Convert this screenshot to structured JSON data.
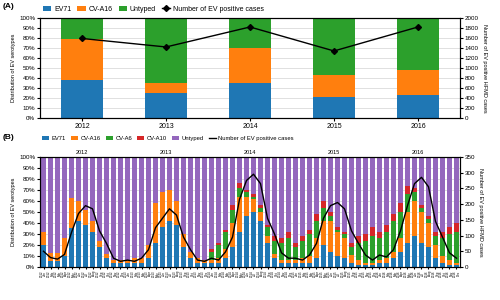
{
  "chart_data": [
    {
      "type": "bar",
      "stacked": true,
      "title": "(A)",
      "categories": [
        "2012",
        "2013",
        "2014",
        "2015",
        "2016"
      ],
      "ylabel": "Distribution of EV serotypes",
      "y2label": "Number of EV positive HFMD cases",
      "ylim": [
        0,
        100
      ],
      "yticks": [
        {
          "value": 0,
          "label": "0%"
        },
        {
          "value": 10,
          "label": "10%"
        },
        {
          "value": 20,
          "label": "20%"
        },
        {
          "value": 30,
          "label": "30%"
        },
        {
          "value": 40,
          "label": "40%"
        },
        {
          "value": 50,
          "label": "50%"
        },
        {
          "value": 60,
          "label": "60%"
        },
        {
          "value": 70,
          "label": "70%"
        },
        {
          "value": 80,
          "label": "80%"
        },
        {
          "value": 90,
          "label": "90%"
        },
        {
          "value": 100,
          "label": "100%"
        }
      ],
      "y2lim": [
        0,
        2000
      ],
      "y2ticks": [
        0,
        200,
        400,
        600,
        800,
        1000,
        1200,
        1400,
        1600,
        1800,
        2000
      ],
      "grid": true,
      "legend": "upper left",
      "series": [
        {
          "name": "EV71",
          "values": [
            38,
            25,
            35,
            21,
            23
          ]
        },
        {
          "name": "CV-A16",
          "values": [
            41,
            10,
            35,
            22,
            25
          ]
        },
        {
          "name": "Untyped",
          "values": [
            21,
            65,
            30,
            57,
            52
          ]
        },
        {
          "name": "Number of EV positive cases",
          "type": "line",
          "axis": "y2",
          "color": "black",
          "marker": "diamond",
          "values": [
            1590,
            1420,
            1820,
            1340,
            1820
          ]
        }
      ]
    },
    {
      "type": "bar",
      "stacked": true,
      "title": "(B)",
      "categories": [
        "2012\nJan",
        "2012\nFeb",
        "2012\nMar",
        "2012\nApr",
        "2012\nMay",
        "2012\nJun",
        "2012\nJul",
        "2012\nAug",
        "2012\nSep",
        "2012\nOct",
        "2012\nNov",
        "2012\nDec",
        "2013\nJan",
        "2013\nFeb",
        "2013\nMar",
        "2013\nApr",
        "2013\nMay",
        "2013\nJun",
        "2013\nJul",
        "2013\nAug",
        "2013\nSep",
        "2013\nOct",
        "2013\nNov",
        "2013\nDec",
        "2014\nJan",
        "2014\nFeb",
        "2014\nMar",
        "2014\nApr",
        "2014\nMay",
        "2014\nJun",
        "2014\nJul",
        "2014\nAug",
        "2014\nSep",
        "2014\nOct",
        "2014\nNov",
        "2014\nDec",
        "2015\nJan",
        "2015\nFeb",
        "2015\nMar",
        "2015\nApr",
        "2015\nMay",
        "2015\nJun",
        "2015\nJul",
        "2015\nAug",
        "2015\nSep",
        "2015\nOct",
        "2015\nNov",
        "2015\nDec",
        "2016\nJan",
        "2016\nFeb",
        "2016\nMar",
        "2016\nApr",
        "2016\nMay",
        "2016\nJun",
        "2016\nJul",
        "2016\nAug",
        "2016\nSep",
        "2016\nOct",
        "2016\nNov",
        "2016\nDec"
      ],
      "ylabel": "Distribution of EV serotypes",
      "y2label": "Number of EV positive HFMD cases",
      "ylim": [
        0,
        100
      ],
      "yticks": [
        {
          "value": 0,
          "label": "0%"
        },
        {
          "value": 10,
          "label": "10%"
        },
        {
          "value": 20,
          "label": "20%"
        },
        {
          "value": 30,
          "label": "30%"
        },
        {
          "value": 40,
          "label": "40%"
        },
        {
          "value": 50,
          "label": "50%"
        },
        {
          "value": 60,
          "label": "60%"
        },
        {
          "value": 70,
          "label": "70%"
        },
        {
          "value": 80,
          "label": "80%"
        },
        {
          "value": 90,
          "label": "90%"
        },
        {
          "value": 100,
          "label": "100%"
        }
      ],
      "y2lim": [
        0,
        350
      ],
      "y2ticks": [
        0,
        50,
        100,
        150,
        200,
        250,
        300,
        350
      ],
      "grid": true,
      "legend": "upper left",
      "annotations": [
        "2012",
        "2013",
        "2014",
        "2015",
        "2016"
      ],
      "series": [
        {
          "name": "EV71",
          "values": [
            20,
            5,
            5,
            10,
            35,
            42,
            38,
            32,
            18,
            8,
            4,
            4,
            4,
            4,
            4,
            8,
            22,
            36,
            42,
            38,
            18,
            8,
            4,
            4,
            4,
            4,
            8,
            18,
            32,
            46,
            50,
            42,
            22,
            8,
            4,
            4,
            4,
            4,
            4,
            8,
            20,
            14,
            10,
            8,
            3.7037037037037037,
            2,
            2,
            2,
            4,
            4,
            8,
            14,
            22,
            28,
            22,
            18,
            8,
            4,
            2,
            2
          ]
        },
        {
          "name": "CV-A16",
          "values": [
            12,
            8,
            8,
            16,
            28,
            18,
            14,
            10,
            6,
            4,
            2,
            2,
            2,
            4,
            4,
            12,
            36,
            32,
            28,
            22,
            12,
            6,
            4,
            2,
            2,
            4,
            8,
            22,
            32,
            18,
            12,
            8,
            6,
            4,
            2,
            2,
            2,
            4,
            6,
            18,
            22,
            28,
            22,
            18,
            7.407407407407407,
            4,
            2,
            2,
            2,
            4,
            6,
            12,
            28,
            32,
            28,
            22,
            12,
            6,
            4,
            2
          ]
        },
        {
          "name": "CV-A6",
          "values": [
            0,
            0,
            0,
            0,
            0,
            0,
            0,
            0,
            0,
            0,
            0,
            0,
            0,
            0,
            0,
            0,
            0,
            0,
            0,
            0,
            0,
            0,
            0,
            0,
            8,
            12,
            16,
            12,
            8,
            4,
            2,
            4,
            8,
            12,
            16,
            20,
            12,
            16,
            20,
            16,
            12,
            4,
            2,
            4,
            7.407407407407407,
            16,
            20,
            24,
            20,
            24,
            28,
            24,
            16,
            8,
            4,
            4,
            8,
            16,
            24,
            28
          ]
        },
        {
          "name": "CV-A10",
          "values": [
            0,
            0,
            0,
            0,
            0,
            0,
            0,
            0,
            0,
            0,
            0,
            0,
            0,
            0,
            0,
            0,
            0,
            0,
            0,
            0,
            0,
            0,
            0,
            0,
            2,
            2,
            2,
            4,
            4,
            2,
            2,
            2,
            2,
            4,
            4,
            6,
            4,
            4,
            4,
            6,
            6,
            4,
            2,
            2,
            3.7037037037037037,
            6,
            6,
            8,
            6,
            6,
            6,
            8,
            8,
            4,
            2,
            2,
            4,
            6,
            6,
            8
          ]
        },
        {
          "name": "Untyped",
          "values": [
            68,
            87,
            87,
            74,
            37,
            40,
            48,
            58,
            76,
            88,
            94,
            94,
            94,
            92,
            92,
            80,
            42,
            32,
            30,
            40,
            70,
            86,
            92,
            94,
            84,
            78,
            66,
            44,
            24,
            30,
            34,
            44,
            62,
            72,
            74,
            68,
            78,
            72,
            66,
            52,
            40,
            50,
            64,
            68,
            77.77777777777777,
            72,
            70,
            64,
            68,
            62,
            52,
            42,
            26,
            28,
            44,
            54,
            68,
            68,
            64,
            60
          ]
        },
        {
          "name": "Number of EV positive cases",
          "type": "line",
          "axis": "y2",
          "color": "black",
          "values": [
            50,
            30,
            25,
            40,
            110,
            170,
            195,
            185,
            115,
            75,
            28,
            18,
            22,
            18,
            28,
            55,
            125,
            155,
            185,
            165,
            95,
            55,
            22,
            18,
            28,
            22,
            48,
            95,
            215,
            275,
            295,
            265,
            155,
            105,
            45,
            28,
            28,
            22,
            38,
            75,
            155,
            195,
            205,
            185,
            115,
            75,
            38,
            22,
            38,
            32,
            55,
            115,
            195,
            265,
            285,
            255,
            145,
            95,
            45,
            28
          ]
        }
      ]
    }
  ]
}
